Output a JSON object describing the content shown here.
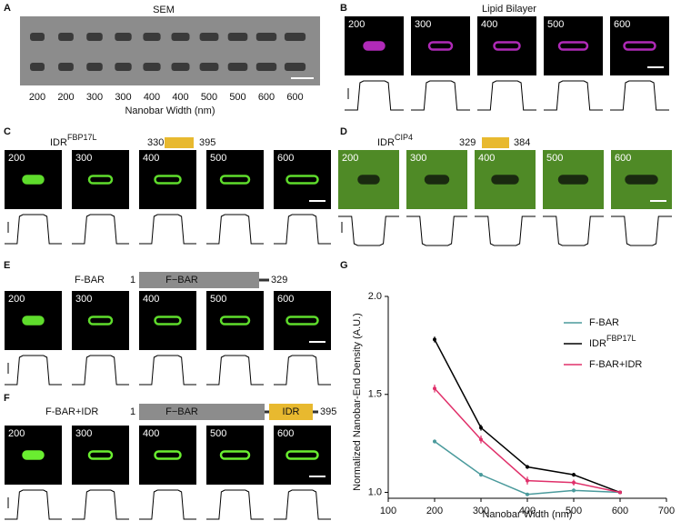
{
  "panels": {
    "A": {
      "letter": "A",
      "title": "SEM",
      "labels": [
        "200",
        "200",
        "300",
        "300",
        "400",
        "400",
        "500",
        "500",
        "600",
        "600"
      ],
      "xlabel": "Nanobar Width (nm)"
    },
    "B": {
      "letter": "B",
      "title": "Lipid Bilayer",
      "labels": [
        "200",
        "300",
        "400",
        "500",
        "600"
      ]
    },
    "C": {
      "letter": "C",
      "construct": "IDR",
      "construct_sup": "FBP17L",
      "start": "330",
      "end": "395",
      "labels": [
        "200",
        "300",
        "400",
        "500",
        "600"
      ]
    },
    "D": {
      "letter": "D",
      "construct": "IDR",
      "construct_sup": "CIP4",
      "start": "329",
      "end": "384",
      "labels": [
        "200",
        "300",
        "400",
        "500",
        "600"
      ]
    },
    "E": {
      "letter": "E",
      "construct": "F-BAR",
      "start": "1",
      "domain": "F−BAR",
      "end": "329",
      "labels": [
        "200",
        "300",
        "400",
        "500",
        "600"
      ]
    },
    "F": {
      "letter": "F",
      "construct": "F-BAR+IDR",
      "start": "1",
      "domain": "F−BAR",
      "domain2": "IDR",
      "end": "395",
      "labels": [
        "200",
        "300",
        "400",
        "500",
        "600"
      ]
    }
  },
  "chart_data": {
    "type": "line",
    "letter": "G",
    "x_label": "Nanobar Width (nm)",
    "y_label": "Normalized Nanobar-End Density (A.U.)",
    "x": [
      200,
      300,
      400,
      500,
      600
    ],
    "series": [
      {
        "name": "F-BAR",
        "color": "#4a9a9c",
        "values": [
          1.26,
          1.09,
          0.99,
          1.01,
          1.0
        ],
        "errors": [
          0.01,
          0.01,
          0.005,
          0.01,
          0
        ]
      },
      {
        "name": "IDR",
        "name_sup": "FBP17L",
        "color": "#000000",
        "values": [
          1.78,
          1.33,
          1.13,
          1.09,
          1.0
        ],
        "errors": [
          0.015,
          0.015,
          0.01,
          0.01,
          0
        ]
      },
      {
        "name": "F-BAR+IDR",
        "color": "#e0306a",
        "values": [
          1.53,
          1.27,
          1.06,
          1.05,
          1.0
        ],
        "errors": [
          0.02,
          0.02,
          0.02,
          0.015,
          0
        ]
      }
    ],
    "xlim": [
      100,
      700
    ],
    "xticks": [
      100,
      200,
      300,
      400,
      500,
      600,
      700
    ],
    "ylim": [
      0.97,
      2.0
    ],
    "yticks": [
      {
        "value": 1.0,
        "label": "1.0"
      },
      {
        "value": 1.5,
        "label": "1.5"
      },
      {
        "value": 2.0,
        "label": "2.0"
      }
    ],
    "legend": "upper right"
  }
}
